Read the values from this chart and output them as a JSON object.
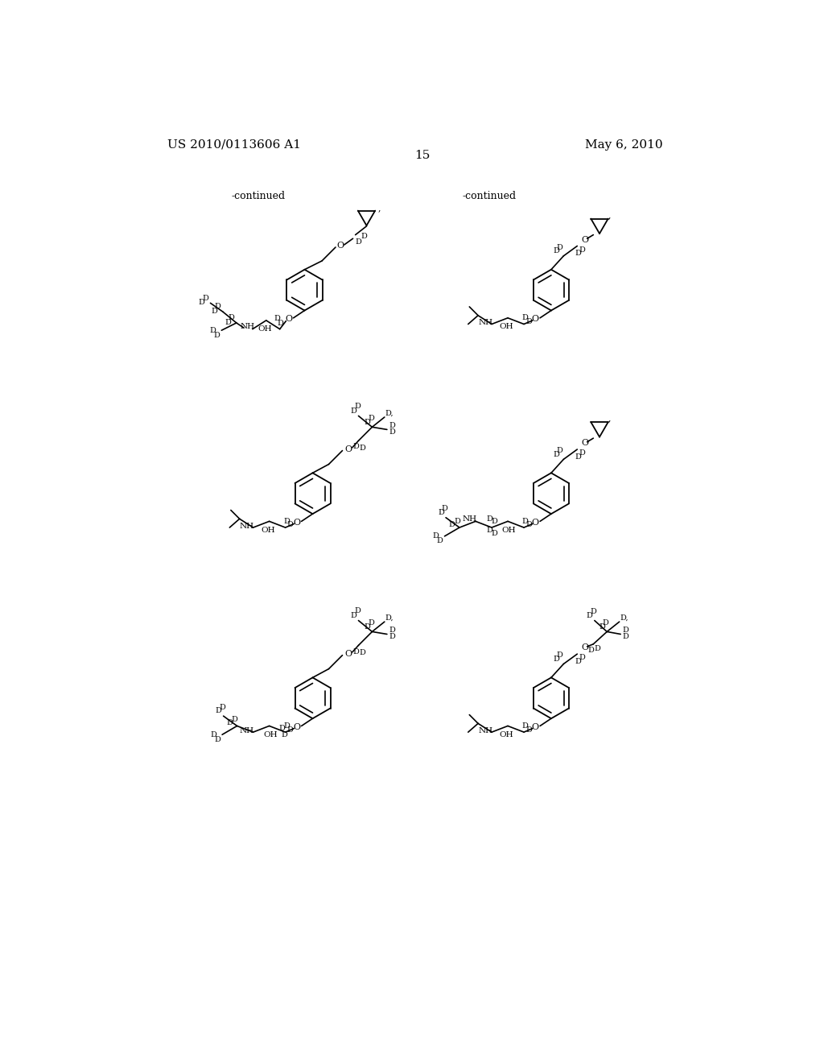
{
  "patent_number": "US 2010/0113606 A1",
  "date": "May 6, 2010",
  "page_number": "15",
  "continued_left": "-continued",
  "continued_right": "-continued",
  "bg_color": "#ffffff",
  "line_color": "#000000",
  "text_color": "#000000",
  "font_size_header": 11,
  "font_size_small": 9,
  "font_size_atom": 7.5,
  "font_size_D": 7
}
